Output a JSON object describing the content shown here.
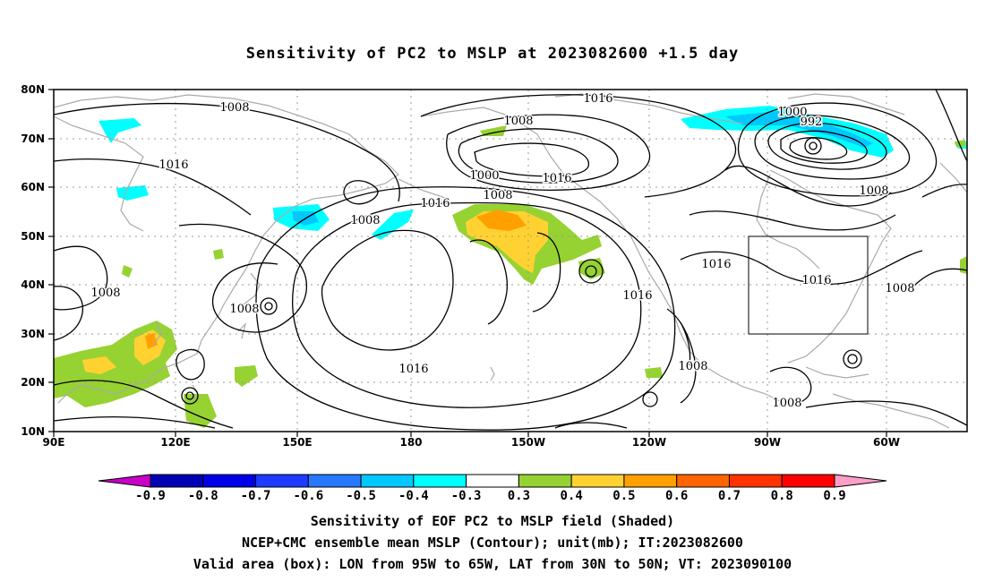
{
  "title": "Sensitivity of PC2 to MSLP at 2023082600 +1.5 day",
  "axes": {
    "lat_ticks": [
      "80N",
      "70N",
      "60N",
      "50N",
      "40N",
      "30N",
      "20N",
      "10N"
    ],
    "lon_ticks": [
      "90E",
      "120E",
      "150E",
      "180",
      "150W",
      "120W",
      "90W",
      "60W"
    ]
  },
  "contour_labels": [
    {
      "text": "1008"
    },
    {
      "text": "1016"
    },
    {
      "text": "1008"
    },
    {
      "text": "1008"
    },
    {
      "text": "1008"
    },
    {
      "text": "1016"
    },
    {
      "text": "1000"
    },
    {
      "text": "1008"
    },
    {
      "text": "1016"
    },
    {
      "text": "1008"
    },
    {
      "text": "1016"
    },
    {
      "text": "1016"
    },
    {
      "text": "1000"
    },
    {
      "text": "992"
    },
    {
      "text": "1008"
    },
    {
      "text": "1016"
    },
    {
      "text": "1016"
    },
    {
      "text": "1016"
    },
    {
      "text": "1008"
    },
    {
      "text": "1008"
    },
    {
      "text": "1008"
    }
  ],
  "colorbar": {
    "labels": [
      "-0.9",
      "-0.8",
      "-0.7",
      "-0.6",
      "-0.5",
      "-0.4",
      "-0.3",
      "0.3",
      "0.4",
      "0.5",
      "0.6",
      "0.7",
      "0.8",
      "0.9"
    ],
    "colors": [
      "#0000b4",
      "#0000e6",
      "#1e3cff",
      "#2878ff",
      "#00c8ff",
      "#00ffff",
      "#ffffff",
      "#96d232",
      "#ffd232",
      "#ffa000",
      "#ff6400",
      "#ff3200",
      "#ff0000"
    ],
    "low_arrow_color": "#c800c8",
    "high_arrow_color": "#ff9ec8"
  },
  "captions": {
    "line1": "Sensitivity of EOF PC2 to MSLP field (Shaded)",
    "line2": "NCEP+CMC ensemble mean MSLP (Contour); unit(mb); IT:2023082600",
    "line3": "Valid area (box): LON from 95W to 65W, LAT from 30N to 50N; VT: 2023090100"
  }
}
